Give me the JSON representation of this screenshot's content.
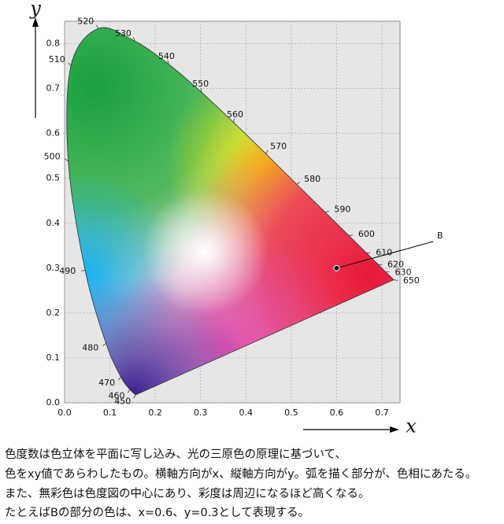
{
  "chart_data": {
    "type": "chromaticity",
    "xlabel": "x",
    "ylabel": "y",
    "xlim": [
      0,
      0.74
    ],
    "ylim": [
      0,
      0.85
    ],
    "xticks": [
      {
        "value": 0,
        "label": "0.0"
      },
      0.1,
      0.2,
      0.3,
      0.4,
      0.5,
      0.6,
      0.7
    ],
    "yticks": [
      {
        "value": 0,
        "label": "0.0"
      },
      0.1,
      0.2,
      0.3,
      0.4,
      0.5,
      0.6,
      0.7,
      0.8
    ],
    "grid": true,
    "locus": {
      "labels": [
        "450",
        "460",
        "470",
        "480",
        "490",
        "500",
        "510",
        "520",
        "530",
        "540",
        "550",
        "560",
        "570",
        "580",
        "590",
        "600",
        "610",
        "620",
        "630",
        "650"
      ],
      "x": [
        0.1566,
        0.144,
        0.1241,
        0.0913,
        0.0454,
        0.0082,
        0.0139,
        0.0743,
        0.1547,
        0.2296,
        0.3016,
        0.3731,
        0.4441,
        0.5125,
        0.5752,
        0.627,
        0.6658,
        0.6915,
        0.7079,
        0.726
      ],
      "y": [
        0.0177,
        0.0297,
        0.0578,
        0.1327,
        0.295,
        0.5384,
        0.7502,
        0.8338,
        0.8059,
        0.7543,
        0.6923,
        0.6245,
        0.5547,
        0.4866,
        0.4242,
        0.3725,
        0.334,
        0.3083,
        0.292,
        0.274
      ]
    },
    "point": {
      "label": "B",
      "x": 0.6,
      "y": 0.3
    }
  },
  "caption": [
    "色度数は色立体を平面に写し込み、光の三原色の原理に基づいて、",
    "色をxy値であらわしたもの。横軸方向がx、縦軸方向がy。弧を描く部分が、色相にあたる。",
    "また、無彩色は色度図の中心にあり、彩度は周辺になるほど高くなる。",
    "たとえばBの部分の色は、x=0.6、y=0.3として表現する。"
  ]
}
